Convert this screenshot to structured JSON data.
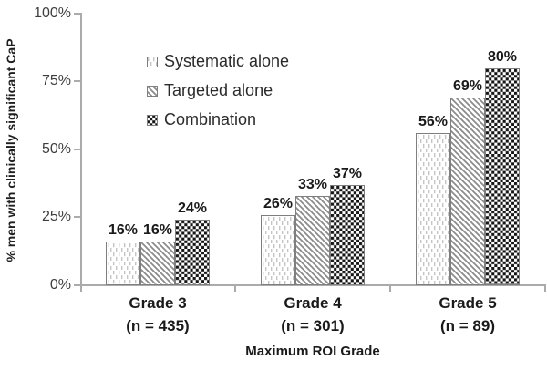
{
  "chart_data": {
    "type": "bar",
    "title": "",
    "xlabel": "Maximum ROI Grade",
    "ylabel": "% men with clinically significant CaP",
    "categories": [
      "Grade 3",
      "Grade 4",
      "Grade 5"
    ],
    "category_sublabels": [
      "(n = 435)",
      "(n = 301)",
      "(n = 89)"
    ],
    "series": [
      {
        "name": "Systematic alone",
        "pattern": "vertical-dashes",
        "values": [
          16,
          26,
          56
        ]
      },
      {
        "name": "Targeted alone",
        "pattern": "diagonal-hatch",
        "values": [
          16,
          33,
          69
        ]
      },
      {
        "name": "Combination",
        "pattern": "checkerboard",
        "values": [
          24,
          37,
          80
        ]
      }
    ],
    "value_labels": [
      [
        "16%",
        "16%",
        "24%"
      ],
      [
        "26%",
        "33%",
        "37%"
      ],
      [
        "56%",
        "69%",
        "80%"
      ]
    ],
    "yticks": [
      "0%",
      "25%",
      "50%",
      "75%",
      "100%"
    ],
    "ylim": [
      0,
      100
    ],
    "grid": false,
    "legend_position": "upper-left-inside"
  },
  "colors": {
    "axis": "#ababab",
    "tick_label": "#3d3d3d",
    "label_text": "#1a1a1a",
    "bar_border": "#7f7f7f",
    "pattern_dots": "#c5c5c5",
    "pattern_diagonal": "#8a8a8a",
    "pattern_checker": "#161616"
  }
}
